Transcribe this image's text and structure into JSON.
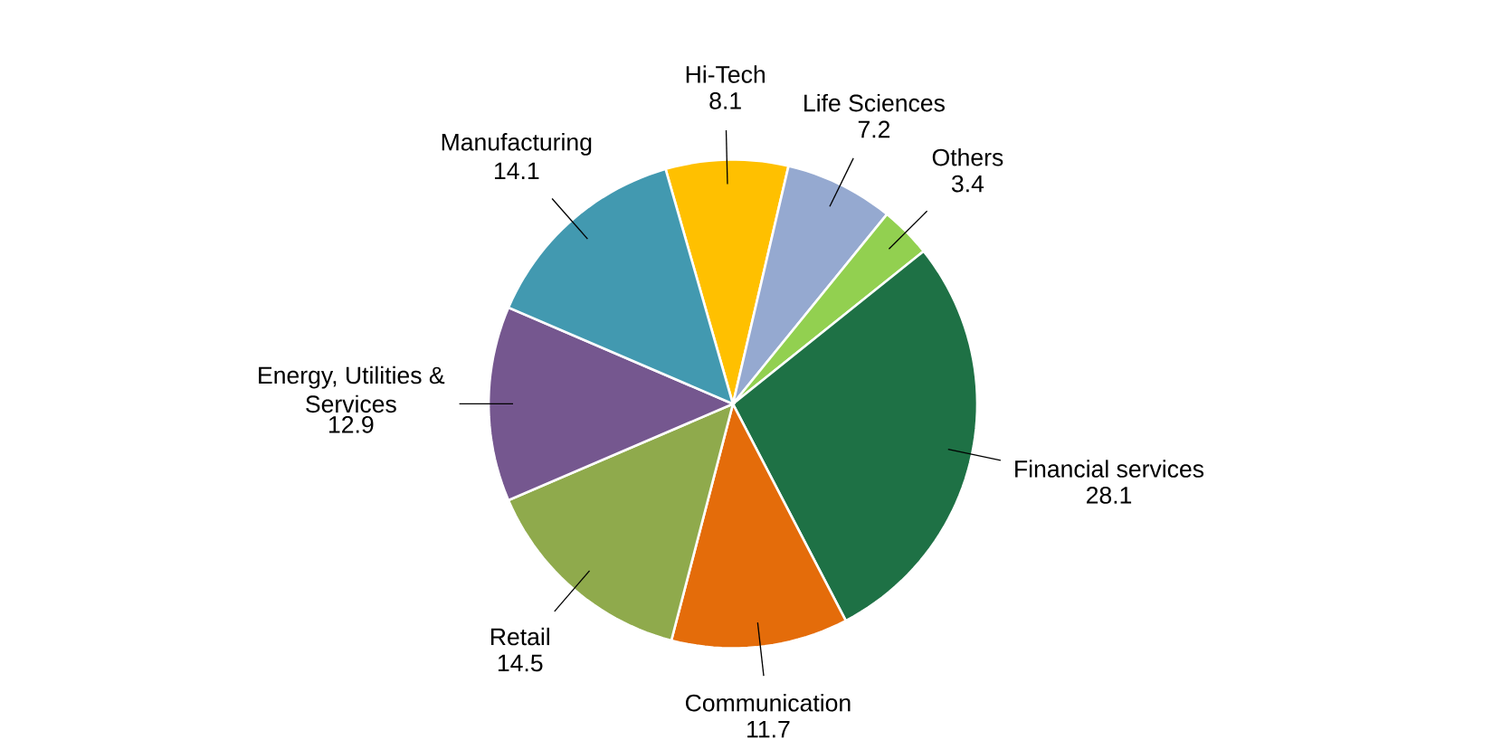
{
  "chart_data": {
    "type": "pie",
    "categories": [
      "Hi-Tech",
      "Life Sciences",
      "Others",
      "Financial services",
      "Communication",
      "Retail",
      "Energy, Utilities & Services",
      "Manufacturing"
    ],
    "values": [
      8.1,
      7.2,
      3.4,
      28.1,
      11.7,
      14.5,
      12.9,
      14.1
    ],
    "colors": [
      "#ffc000",
      "#95a9d0",
      "#92d050",
      "#1e7145",
      "#e46c0a",
      "#8faa4c",
      "#75578f",
      "#4299b0"
    ],
    "data_labels": true
  }
}
